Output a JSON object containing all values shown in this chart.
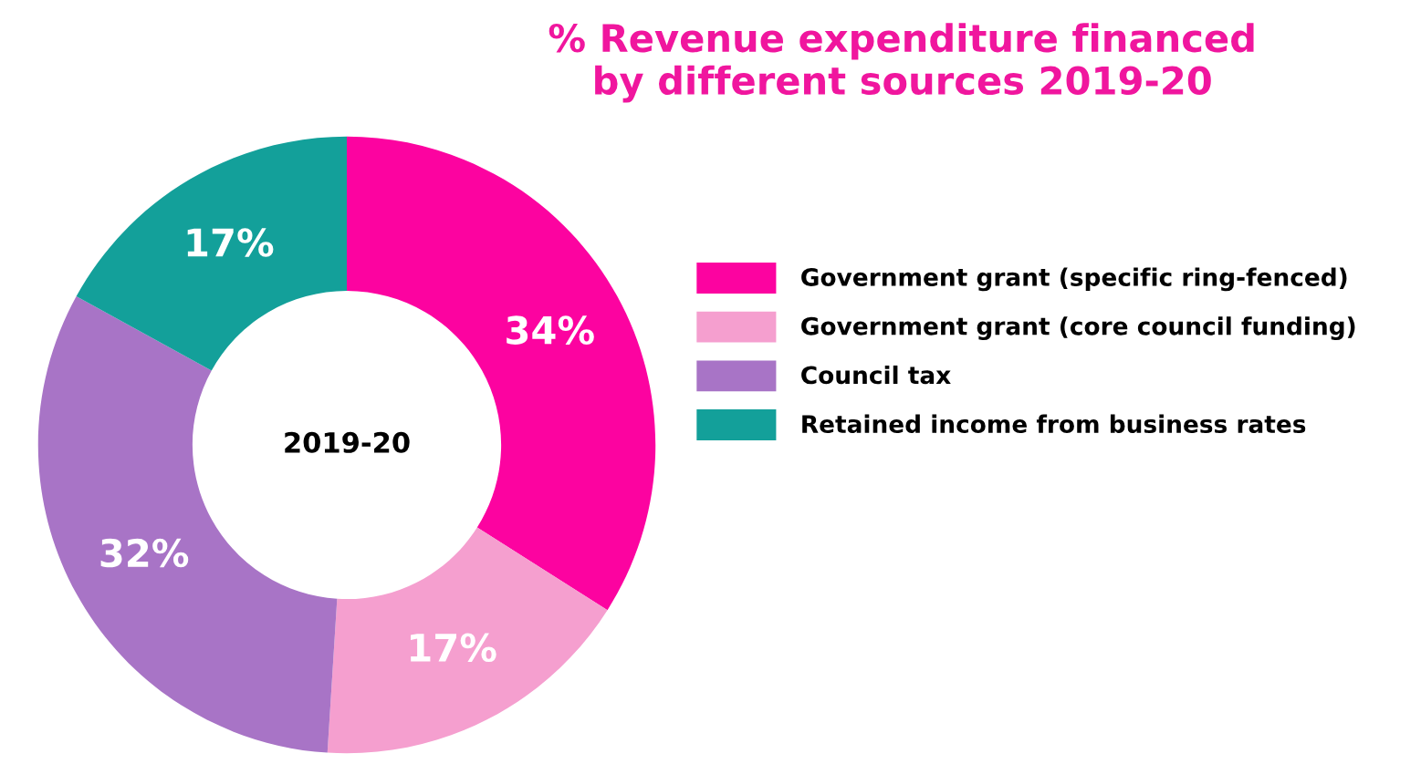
{
  "chart_data": {
    "type": "donut",
    "title": "% Revenue expenditure financed\nby different sources 2019-20",
    "categories": [
      "Government grant (specific ring-fenced)",
      "Government grant (core council funding)",
      "Council tax",
      "Retained income from business rates"
    ],
    "values": [
      34,
      17,
      32,
      17
    ],
    "colors": [
      "#fc03a0",
      "#f59fcf",
      "#a874c6",
      "#13a09a"
    ],
    "value_labels": [
      "34%",
      "17%",
      "32%",
      "17%"
    ],
    "annotations": [
      "2019-20"
    ],
    "legend": "right"
  }
}
